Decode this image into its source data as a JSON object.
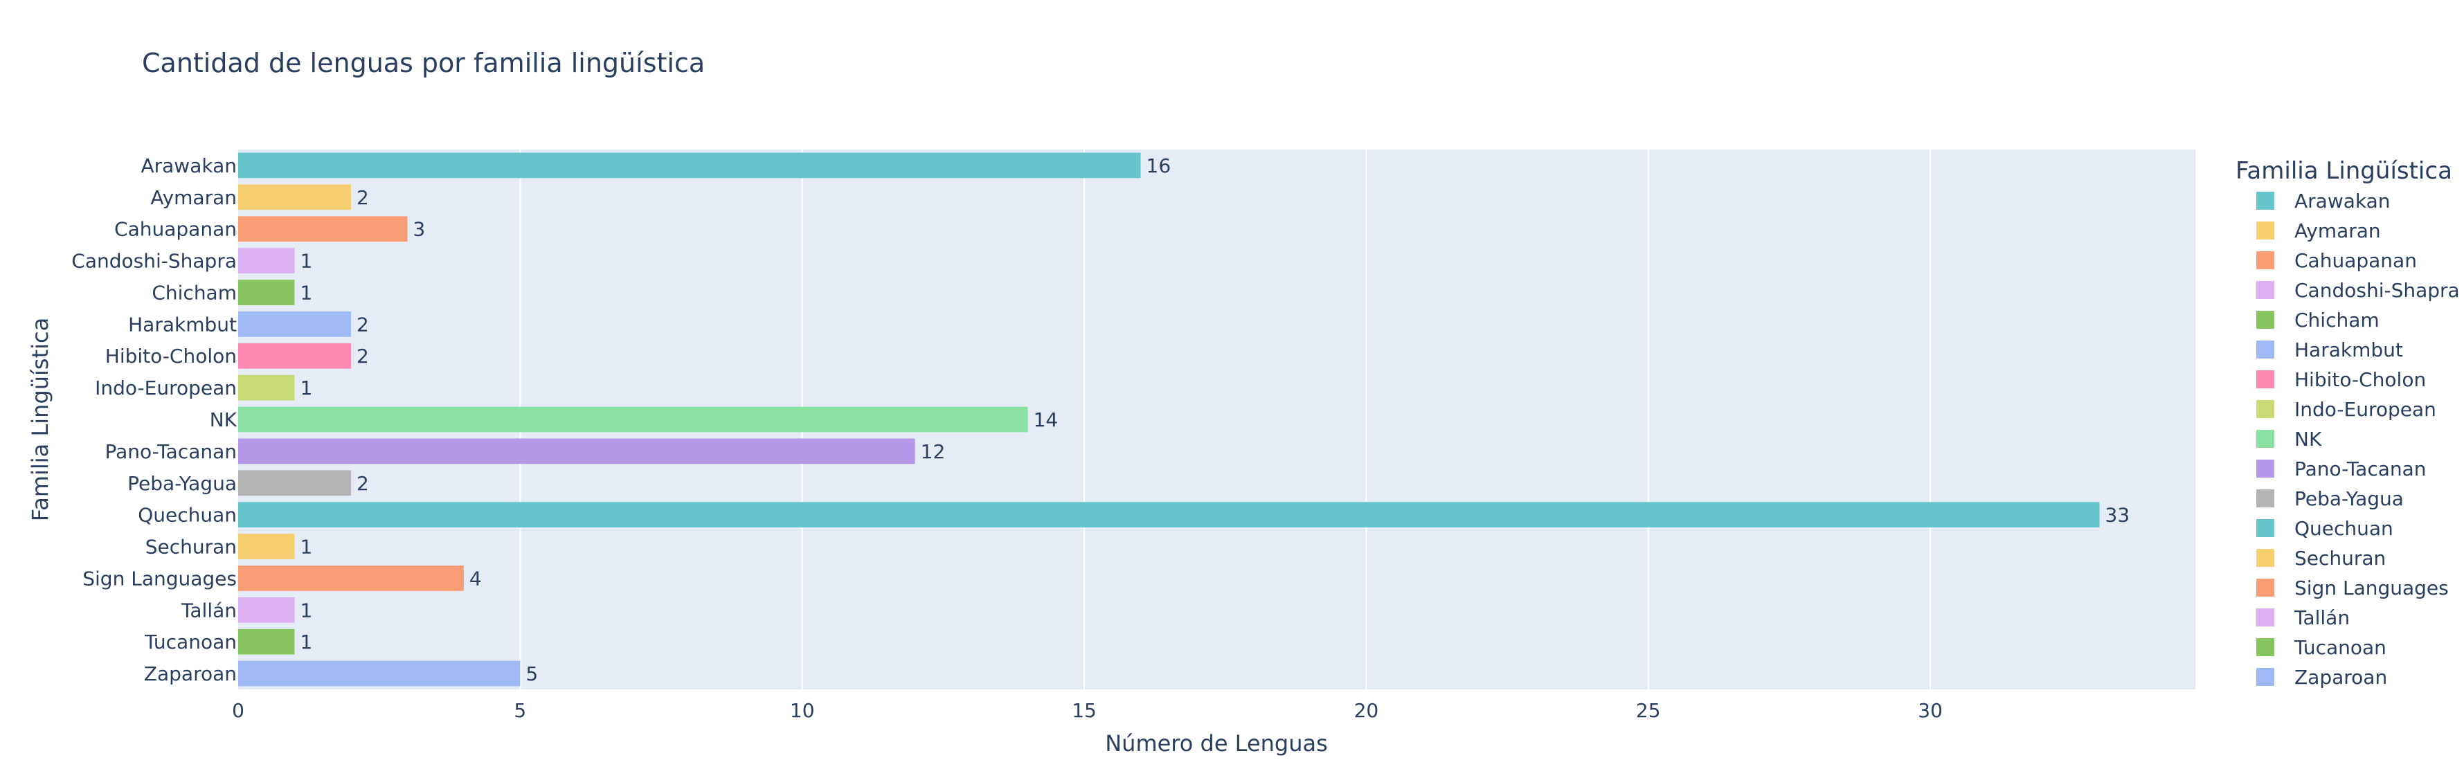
{
  "chart_data": {
    "type": "bar",
    "orientation": "horizontal",
    "title": "Cantidad de lenguas por familia lingüística",
    "xlabel": "Número de Lenguas",
    "ylabel": "Familia Lingüística",
    "xlim": [
      0,
      34.7
    ],
    "x_ticks": [
      0,
      5,
      10,
      15,
      20,
      25,
      30
    ],
    "grid": true,
    "legend_title": "Familia Lingüística",
    "legend_position": "right",
    "categories": [
      "Arawakan",
      "Aymaran",
      "Cahuapanan",
      "Candoshi-Shapra",
      "Chicham",
      "Harakmbut",
      "Hibito-Cholon",
      "Indo-European",
      "NK",
      "Pano-Tacanan",
      "Peba-Yagua",
      "Quechuan",
      "Sechuran",
      "Sign Languages",
      "Tallán",
      "Tucanoan",
      "Zaparoan"
    ],
    "values": [
      16,
      2,
      3,
      1,
      1,
      2,
      2,
      1,
      14,
      12,
      2,
      33,
      1,
      4,
      1,
      1,
      5
    ],
    "colors": [
      "#66c5cc",
      "#f6cf71",
      "#f89c74",
      "#dcb0f2",
      "#87c55f",
      "#9eb9f3",
      "#fe88b1",
      "#c9db74",
      "#8be0a4",
      "#b497e7",
      "#b3b3b3",
      "#66c5cc",
      "#f6cf71",
      "#f89c74",
      "#dcb0f2",
      "#87c55f",
      "#9eb9f3"
    ],
    "plot_bg": "#e5ecf6"
  }
}
